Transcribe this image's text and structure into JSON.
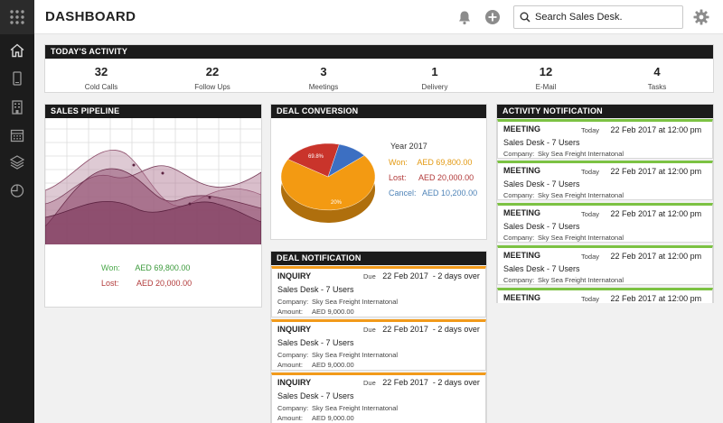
{
  "header": {
    "title": "DASHBOARD",
    "search_placeholder": "Search Sales Desk."
  },
  "sidebar": {
    "items": [
      "home-icon",
      "phone-icon",
      "building-icon",
      "calendar-icon",
      "layers-icon",
      "clock-icon"
    ]
  },
  "activity": {
    "title": "TODAY'S ACTIVITY",
    "stats": [
      {
        "value": "32",
        "label": "Cold Calls"
      },
      {
        "value": "22",
        "label": "Follow Ups"
      },
      {
        "value": "3",
        "label": "Meetings"
      },
      {
        "value": "1",
        "label": "Delivery"
      },
      {
        "value": "12",
        "label": "E-Mail"
      },
      {
        "value": "4",
        "label": "Tasks"
      }
    ]
  },
  "pipeline": {
    "title": "SALES PIPELINE",
    "won_label": "Won:",
    "won_value": "AED 69,800.00",
    "lost_label": "Lost:",
    "lost_value": "AED 20,000.00"
  },
  "conversion": {
    "title": "DEAL CONVERSION",
    "year": "Year 2017",
    "won_label": "Won:",
    "won_value": "AED 69,800.00",
    "lost_label": "Lost:",
    "lost_value": "AED 20,000.00",
    "cancel_label": "Cancel:",
    "cancel_value": "AED 10,200.00",
    "pie_won_pct": "69.8%",
    "pie_lost_pct": "20%"
  },
  "chart_data": {
    "type": "pie",
    "categories": [
      "Won",
      "Lost",
      "Cancel"
    ],
    "values": [
      69800,
      20000,
      10200
    ],
    "percent_labels": [
      "69.8%",
      "20%",
      ""
    ],
    "colors": [
      "#f39a12",
      "#c9342b",
      "#3c6fc2"
    ]
  },
  "deal_notifications": {
    "title": "DEAL NOTIFICATION",
    "items": [
      {
        "type": "INQUIRY",
        "due_label": "Due",
        "due": "22 Feb 2017",
        "overdue": "- 2 days over",
        "title": "Sales Desk - 7 Users",
        "company_label": "Company:",
        "company": "Sky Sea Freight Internatonal",
        "amount_label": "Amount:",
        "amount": "AED 9,000.00"
      },
      {
        "type": "INQUIRY",
        "due_label": "Due",
        "due": "22 Feb 2017",
        "overdue": "- 2 days over",
        "title": "Sales Desk - 7 Users",
        "company_label": "Company:",
        "company": "Sky Sea Freight Internatonal",
        "amount_label": "Amount:",
        "amount": "AED 9,000.00"
      },
      {
        "type": "INQUIRY",
        "due_label": "Due",
        "due": "22 Feb 2017",
        "overdue": "- 2 days over",
        "title": "Sales Desk - 7 Users",
        "company_label": "Company:",
        "company": "Sky Sea Freight Internatonal",
        "amount_label": "Amount:",
        "amount": "AED 9,000.00"
      }
    ]
  },
  "activity_notifications": {
    "title": "ACTIVITY NOTIFICATION",
    "items": [
      {
        "type": "MEETING",
        "day": "Today",
        "when": "22 Feb 2017  at 12:00 pm",
        "title": "Sales Desk - 7 Users",
        "company_label": "Company:",
        "company": "Sky Sea Freight Internatonal"
      },
      {
        "type": "MEETING",
        "day": "Today",
        "when": "22 Feb 2017  at 12:00 pm",
        "title": "Sales Desk - 7 Users",
        "company_label": "Company:",
        "company": "Sky Sea Freight Internatonal"
      },
      {
        "type": "MEETING",
        "day": "Today",
        "when": "22 Feb 2017  at 12:00 pm",
        "title": "Sales Desk - 7 Users",
        "company_label": "Company:",
        "company": "Sky Sea Freight Internatonal"
      },
      {
        "type": "MEETING",
        "day": "Today",
        "when": "22 Feb 2017  at 12:00 pm",
        "title": "Sales Desk - 7 Users",
        "company_label": "Company:",
        "company": "Sky Sea Freight Internatonal"
      },
      {
        "type": "MEETING",
        "day": "Today",
        "when": "22 Feb 2017  at 12:00 pm"
      }
    ]
  }
}
